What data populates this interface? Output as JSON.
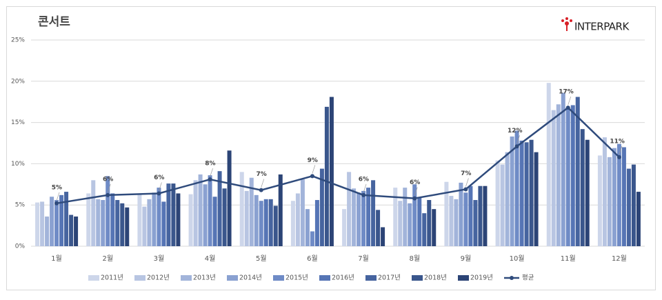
{
  "logo": "INTERPARK",
  "chart_data": {
    "type": "bar",
    "title": "콘서트",
    "categories": [
      "1월",
      "2월",
      "3월",
      "4월",
      "5월",
      "6월",
      "7월",
      "8월",
      "9월",
      "10월",
      "11월",
      "12월"
    ],
    "series": [
      {
        "name": "2011년",
        "color": "#cdd6ea",
        "values": [
          5.3,
          6.4,
          6.3,
          6.3,
          9.0,
          5.5,
          4.5,
          7.1,
          7.8,
          10.4,
          19.8,
          11.0
        ]
      },
      {
        "name": "2012년",
        "color": "#b8c5e2",
        "values": [
          5.4,
          8.0,
          4.8,
          8.0,
          6.7,
          6.4,
          9.0,
          5.5,
          6.1,
          9.9,
          16.5,
          13.2
        ]
      },
      {
        "name": "2013년",
        "color": "#a2b4da",
        "values": [
          3.6,
          5.7,
          5.7,
          8.7,
          8.3,
          8.1,
          7.0,
          7.1,
          5.7,
          11.4,
          17.2,
          10.8
        ]
      },
      {
        "name": "2014년",
        "color": "#8aa1d1",
        "values": [
          6.0,
          5.6,
          6.5,
          7.5,
          6.2,
          4.5,
          6.5,
          5.2,
          7.7,
          13.3,
          18.6,
          11.9
        ]
      },
      {
        "name": "2015년",
        "color": "#6f8bc6",
        "values": [
          5.6,
          8.5,
          7.1,
          8.6,
          5.5,
          1.8,
          6.7,
          7.5,
          6.5,
          14.0,
          16.6,
          12.4
        ]
      },
      {
        "name": "2016년",
        "color": "#5675b5",
        "values": [
          6.2,
          6.4,
          5.4,
          6.0,
          5.7,
          5.6,
          7.1,
          5.9,
          7.3,
          12.8,
          17.1,
          12.0
        ]
      },
      {
        "name": "2017년",
        "color": "#46649f",
        "values": [
          6.6,
          5.6,
          7.6,
          9.1,
          5.7,
          9.4,
          8.0,
          4.0,
          5.6,
          12.6,
          18.1,
          9.4
        ]
      },
      {
        "name": "2018년",
        "color": "#3a568c",
        "values": [
          3.8,
          5.2,
          7.6,
          7.0,
          4.9,
          16.9,
          4.4,
          5.6,
          7.3,
          12.9,
          14.2,
          9.9
        ]
      },
      {
        "name": "2019년",
        "color": "#2c4476",
        "values": [
          3.6,
          4.7,
          6.4,
          11.6,
          8.7,
          18.1,
          2.3,
          4.5,
          7.3,
          11.4,
          12.9,
          6.6
        ]
      }
    ],
    "line": {
      "name": "평균",
      "color": "#2f4b7c",
      "values": [
        5.2,
        6.2,
        6.4,
        8.1,
        6.8,
        8.5,
        6.2,
        5.8,
        6.9,
        12.1,
        16.8,
        10.8
      ],
      "value_labels": [
        "5%",
        "6%",
        "6%",
        "8%",
        "7%",
        "9%",
        "6%",
        "6%",
        "7%",
        "12%",
        "17%",
        "11%"
      ]
    },
    "ylim": [
      0,
      25
    ],
    "yticks": [
      {
        "value": 0,
        "label": "0%"
      },
      {
        "value": 5,
        "label": "5%"
      },
      {
        "value": 10,
        "label": "10%"
      },
      {
        "value": 15,
        "label": "15%"
      },
      {
        "value": 20,
        "label": "20%"
      },
      {
        "value": 25,
        "label": "25%"
      }
    ],
    "grid": true,
    "legend": "bottom"
  }
}
